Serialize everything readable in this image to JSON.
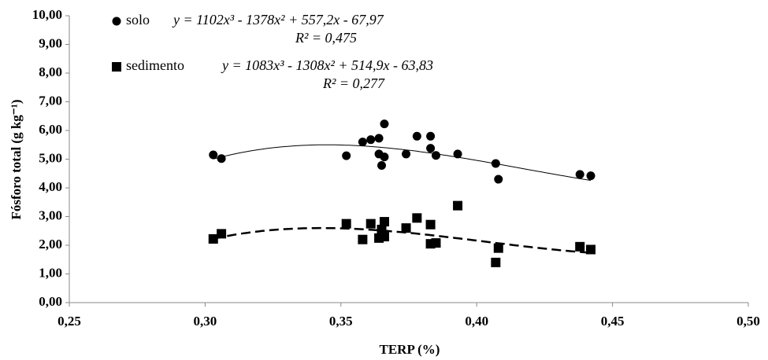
{
  "chart_data": {
    "type": "scatter",
    "xlabel": "TERP (%)",
    "ylabel": "Fósforo total (g kg⁻¹)",
    "xlim": [
      0.25,
      0.5
    ],
    "xticks": [
      {
        "value": 0.25,
        "label": "0,25"
      },
      {
        "value": 0.3,
        "label": "0,30"
      },
      {
        "value": 0.35,
        "label": "0,35"
      },
      {
        "value": 0.4,
        "label": "0,40"
      },
      {
        "value": 0.45,
        "label": "0,45"
      },
      {
        "value": 0.5,
        "label": "0,50"
      }
    ],
    "ylim": [
      0,
      10
    ],
    "yticks": [
      {
        "value": 0,
        "label": "0,00"
      },
      {
        "value": 1,
        "label": "1,00"
      },
      {
        "value": 2,
        "label": "2,00"
      },
      {
        "value": 3,
        "label": "3,00"
      },
      {
        "value": 4,
        "label": "4,00"
      },
      {
        "value": 5,
        "label": "5,00"
      },
      {
        "value": 6,
        "label": "6,00"
      },
      {
        "value": 7,
        "label": "7,00"
      },
      {
        "value": 8,
        "label": "8,00"
      },
      {
        "value": 9,
        "label": "9,00"
      },
      {
        "value": 10,
        "label": "10,00"
      }
    ],
    "series": [
      {
        "name": "solo",
        "marker": "circle",
        "color": "#000000",
        "trendline_style": "solid",
        "equation": "y = 1102x³ - 1378x² + 557,2x - 67,97",
        "r2": "R² = 0,475",
        "fit": [
          1102,
          -1378,
          557.2,
          -67.97
        ],
        "x": [
          0.303,
          0.306,
          0.352,
          0.358,
          0.361,
          0.364,
          0.364,
          0.365,
          0.366,
          0.366,
          0.374,
          0.378,
          0.383,
          0.383,
          0.385,
          0.393,
          0.407,
          0.408,
          0.438,
          0.442
        ],
        "values": [
          5.15,
          5.02,
          5.12,
          5.6,
          5.68,
          5.73,
          5.18,
          4.78,
          6.23,
          5.08,
          5.18,
          5.8,
          5.8,
          5.38,
          5.13,
          5.18,
          4.85,
          4.3,
          4.47,
          4.42
        ]
      },
      {
        "name": "sedimento",
        "marker": "square",
        "color": "#000000",
        "trendline_style": "dashed",
        "equation": "y = 1083x³ - 1308x² + 514,9x - 63,83",
        "r2": "R² = 0,277",
        "fit": [
          1083,
          -1308,
          514.9,
          -63.83
        ],
        "x": [
          0.303,
          0.306,
          0.352,
          0.358,
          0.361,
          0.364,
          0.365,
          0.366,
          0.366,
          0.374,
          0.378,
          0.383,
          0.383,
          0.385,
          0.393,
          0.407,
          0.408,
          0.438,
          0.442
        ],
        "values": [
          2.22,
          2.4,
          2.75,
          2.2,
          2.75,
          2.25,
          2.55,
          2.82,
          2.3,
          2.6,
          2.95,
          2.05,
          2.72,
          2.08,
          3.38,
          1.4,
          1.9,
          1.95,
          1.85
        ]
      }
    ]
  }
}
